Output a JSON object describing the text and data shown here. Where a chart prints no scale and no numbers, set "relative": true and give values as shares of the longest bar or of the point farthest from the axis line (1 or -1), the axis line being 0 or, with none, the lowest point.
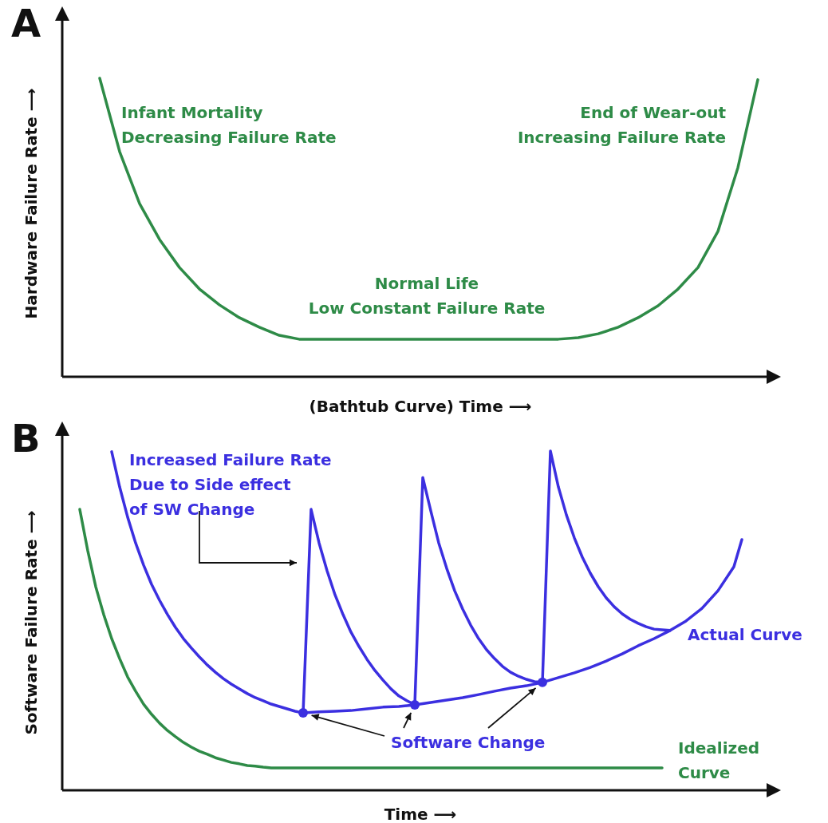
{
  "chart_data": [
    {
      "type": "line",
      "title": "A",
      "xlabel": "(Bathtub Curve) Time ⟶",
      "ylabel": "Hardware Failure Rate ⟶",
      "relative": true,
      "categories": [
        null,
        null,
        null,
        null,
        null,
        null,
        null,
        null,
        null,
        null,
        null,
        null,
        null,
        null,
        null,
        null,
        null,
        null,
        null,
        null,
        null,
        null,
        null,
        null,
        null,
        null,
        null,
        null,
        null,
        null,
        null,
        null,
        null,
        null
      ],
      "series": [
        {
          "color": "#2e8b47",
          "values": [
            1.0,
            0.754,
            0.58,
            0.46,
            0.366,
            0.294,
            0.241,
            0.198,
            0.166,
            0.139,
            0.126,
            0.126,
            0.126,
            0.126,
            0.126,
            0.126,
            0.126,
            0.126,
            0.126,
            0.126,
            0.126,
            0.126,
            0.126,
            0.126,
            0.131,
            0.144,
            0.166,
            0.198,
            0.238,
            0.294,
            0.366,
            0.487,
            0.7,
            0.995
          ]
        }
      ],
      "annotations": [
        "Infant Mortality\nDecreasing Failure Rate",
        "End of Wear-out\nIncreasing Failure Rate",
        "Normal Life\nLow Constant Failure Rate"
      ]
    },
    {
      "type": "line",
      "title": "B",
      "xlabel": "Time ⟶",
      "ylabel": "Software Failure Rate ⟶",
      "relative": true,
      "categories": [
        null,
        null,
        null,
        null,
        null,
        null,
        null,
        null,
        null,
        null,
        null,
        null,
        null,
        null,
        null,
        null,
        null,
        null,
        null,
        null,
        null,
        null,
        null,
        null,
        null,
        null,
        null,
        null,
        null,
        null,
        null,
        null,
        null,
        null,
        null,
        null,
        null,
        null,
        null,
        null,
        null,
        null,
        null,
        null,
        null,
        null,
        null,
        null,
        null,
        null,
        null,
        null,
        null,
        null,
        null,
        null,
        null,
        null,
        null,
        null,
        null,
        null,
        null,
        null,
        null,
        null,
        null,
        null,
        null,
        null,
        null,
        null,
        null,
        null,
        null,
        null,
        null,
        null,
        null,
        null,
        null,
        null,
        null,
        null
      ],
      "series": [
        {
          "name": "Idealized Curve",
          "color": "#2e8b47",
          "values": [
            0.828,
            0.706,
            0.6,
            0.518,
            0.447,
            0.388,
            0.334,
            0.292,
            0.254,
            0.224,
            0.198,
            0.176,
            0.158,
            0.141,
            0.127,
            0.115,
            0.106,
            0.096,
            0.089,
            0.082,
            0.078,
            0.073,
            0.071,
            0.068,
            0.066,
            0.066,
            0.066,
            0.066,
            0.066,
            0.066,
            0.066,
            0.066,
            0.066,
            0.066,
            0.066,
            0.066,
            0.066,
            0.066,
            0.066,
            0.066,
            0.066,
            0.066,
            0.066,
            0.066,
            0.066,
            0.066,
            0.066,
            0.066,
            0.066,
            0.066,
            0.066,
            0.066,
            0.066,
            0.066,
            0.066,
            0.066,
            0.066,
            0.066,
            0.066,
            0.066,
            0.066,
            0.066,
            0.066,
            0.066,
            0.066,
            0.066,
            0.066,
            0.066,
            0.066,
            0.066,
            0.066,
            0.066,
            0.066,
            0.066,
            null,
            null,
            null,
            null,
            null,
            null,
            null,
            null,
            null,
            null
          ]
        },
        {
          "color": "#3b2fe0",
          "values": [
            null,
            null,
            null,
            null,
            0.998,
            0.894,
            0.805,
            0.729,
            0.664,
            0.607,
            0.56,
            0.518,
            0.48,
            0.447,
            0.419,
            0.393,
            0.369,
            0.348,
            0.329,
            0.313,
            0.299,
            0.285,
            0.273,
            0.264,
            0.254,
            0.247,
            0.24,
            0.233,
            0.228,
            0.828,
            0.729,
            0.647,
            0.576,
            0.518,
            0.466,
            0.424,
            0.386,
            0.353,
            0.325,
            0.299,
            0.278,
            0.264,
            0.252,
            0.922,
            0.824,
            0.729,
            0.654,
            0.588,
            0.534,
            0.487,
            0.447,
            0.414,
            0.388,
            0.365,
            0.348,
            0.336,
            0.327,
            0.32,
            0.318,
            1.0,
            0.894,
            0.812,
            0.744,
            0.687,
            0.64,
            0.6,
            0.567,
            0.541,
            0.52,
            0.504,
            0.492,
            0.482,
            0.475,
            0.473,
            0.471,
            null,
            null,
            null,
            null,
            null,
            null,
            null,
            null,
            null
          ]
        },
        {
          "name": "Actual Curve",
          "color": "#3b2fe0",
          "values": [
            null,
            null,
            null,
            null,
            null,
            null,
            null,
            null,
            null,
            null,
            null,
            null,
            null,
            null,
            null,
            null,
            null,
            null,
            null,
            null,
            null,
            null,
            null,
            null,
            null,
            null,
            null,
            null,
            0.228,
            null,
            0.231,
            null,
            0.233,
            null,
            0.235,
            null,
            0.24,
            null,
            0.245,
            null,
            0.247,
            null,
            0.252,
            null,
            0.259,
            null,
            0.266,
            null,
            0.273,
            null,
            0.282,
            null,
            0.292,
            null,
            0.301,
            null,
            0.308,
            null,
            0.318,
            null,
            0.332,
            null,
            0.346,
            null,
            0.362,
            null,
            0.381,
            null,
            0.402,
            null,
            0.426,
            null,
            0.447,
            null,
            0.471,
            null,
            0.499,
            null,
            0.536,
            null,
            0.588,
            null,
            0.659,
            0.739
          ]
        }
      ],
      "annotations": [
        "Increased Failure Rate\nDue to Side effect\nof SW Change",
        "Software Change"
      ]
    }
  ]
}
